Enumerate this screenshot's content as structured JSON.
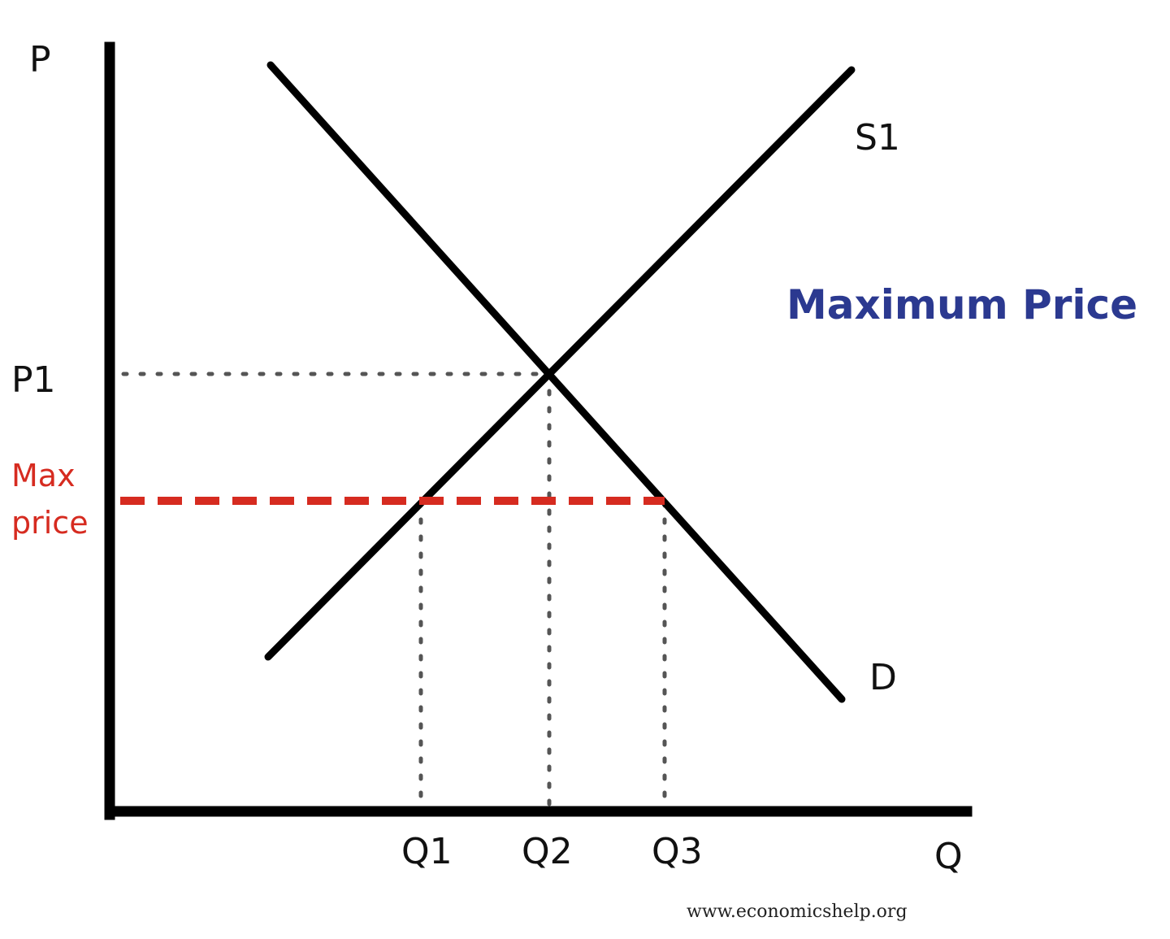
{
  "title": "Maximum Price",
  "axes": {
    "y_label": "P",
    "x_label": "Q"
  },
  "curves": {
    "supply_label": "S1",
    "demand_label": "D"
  },
  "price_labels": {
    "p1": "P1",
    "max_line1": "Max",
    "max_line2": "price"
  },
  "quantity_labels": {
    "q1": "Q1",
    "q2": "Q2",
    "q3": "Q3"
  },
  "credit": "www.economicshelp.org",
  "colors": {
    "title": "#2b3990",
    "max_price": "#d62b20",
    "curves": "#000000"
  }
}
